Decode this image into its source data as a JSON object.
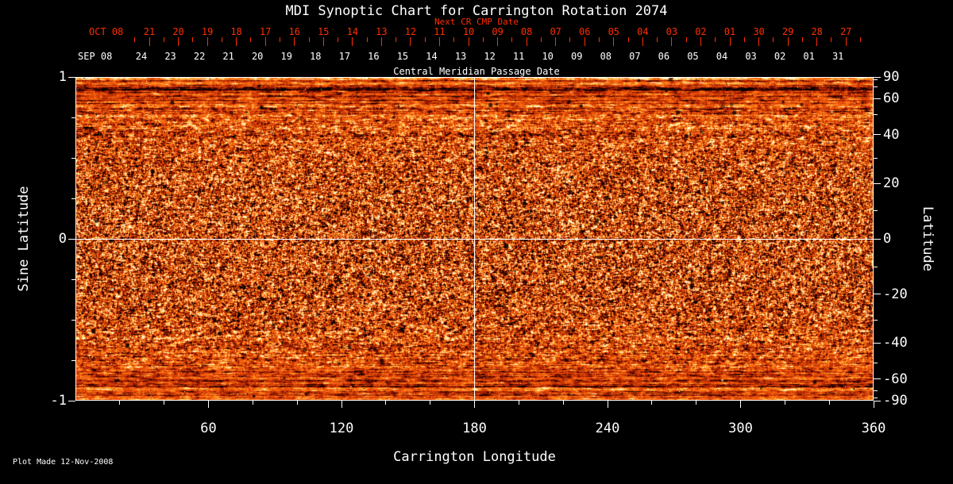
{
  "title": "MDI Synoptic Chart for Carrington Rotation 2074",
  "top_axis": {
    "next_cr_label": "Next CR CMP Date",
    "next_month_label": "OCT 08",
    "next_dates": [
      "21",
      "20",
      "19",
      "18",
      "17",
      "16",
      "15",
      "14",
      "13",
      "12",
      "11",
      "10",
      "09",
      "08",
      "07",
      "06",
      "05",
      "04",
      "03",
      "02",
      "01",
      "30",
      "29",
      "28",
      "27"
    ],
    "cmp_month_label": "SEP 08",
    "cmp_dates": [
      "24",
      "23",
      "22",
      "21",
      "20",
      "19",
      "18",
      "17",
      "16",
      "15",
      "14",
      "13",
      "12",
      "11",
      "10",
      "09",
      "08",
      "07",
      "06",
      "05",
      "04",
      "03",
      "02",
      "01",
      "31"
    ],
    "cmp_axis_title": "Central Meridian Passage Date"
  },
  "left_axis": {
    "label": "Sine Latitude",
    "ticks": [
      "1",
      "0",
      "-1"
    ]
  },
  "right_axis": {
    "label": "Latitude",
    "ticks": [
      90,
      60,
      40,
      20,
      0,
      -20,
      -40,
      -60,
      -90
    ]
  },
  "bottom_axis": {
    "label": "Carrington Longitude",
    "ticks": [
      60,
      120,
      180,
      240,
      300,
      360
    ]
  },
  "footer": {
    "plot_made": "Plot Made 12-Nov-2008"
  },
  "colors": {
    "background": "#000000",
    "axis_white": "#ffffff",
    "next_cr_red": "#ff2d00",
    "base_orange": "#e24808"
  },
  "chart_data": {
    "type": "heatmap",
    "title": "MDI Synoptic Chart for Carrington Rotation 2074",
    "xlabel": "Carrington Longitude",
    "ylabel_left": "Sine Latitude",
    "ylabel_right": "Latitude",
    "xlim": [
      0,
      360
    ],
    "ylim_sine_latitude": [
      -1,
      1
    ],
    "x_ticks": [
      60,
      120,
      180,
      240,
      300,
      360
    ],
    "left_ticks_sine_latitude": [
      1,
      0,
      -1
    ],
    "right_ticks_latitude_deg": [
      90,
      60,
      40,
      20,
      0,
      -20,
      -40,
      -60,
      -90
    ],
    "reference_lines": {
      "vertical_longitude_deg": 180,
      "horizontal_sine_latitude": 0
    },
    "top_axis_cmp_dates_sep_2008": [
      "24",
      "23",
      "22",
      "21",
      "20",
      "19",
      "18",
      "17",
      "16",
      "15",
      "14",
      "13",
      "12",
      "11",
      "10",
      "09",
      "08",
      "07",
      "06",
      "05",
      "04",
      "03",
      "02",
      "01",
      "31"
    ],
    "top_axis_next_cr_dates_oct_2008": [
      "21",
      "20",
      "19",
      "18",
      "17",
      "16",
      "15",
      "14",
      "13",
      "12",
      "11",
      "10",
      "09",
      "08",
      "07",
      "06",
      "05",
      "04",
      "03",
      "02",
      "01",
      "30",
      "29",
      "28",
      "27"
    ],
    "annotations": [
      "Next CR CMP Date",
      "Central Meridian Passage Date",
      "Plot Made 12-Nov-2008"
    ],
    "colormap": "black-red-orange-yellow false color",
    "grid": false,
    "legend": false,
    "description": "Photospheric magnetic field synoptic map for Carrington rotation 2074 shown as a dense orange/red granular speckle field with scattered dark and bright magnetic elements; individual pixel values are not resolvable, horizontal streaking appears near the poles (top/bottom edges). White reference lines cross at 180 deg longitude and the equator."
  }
}
